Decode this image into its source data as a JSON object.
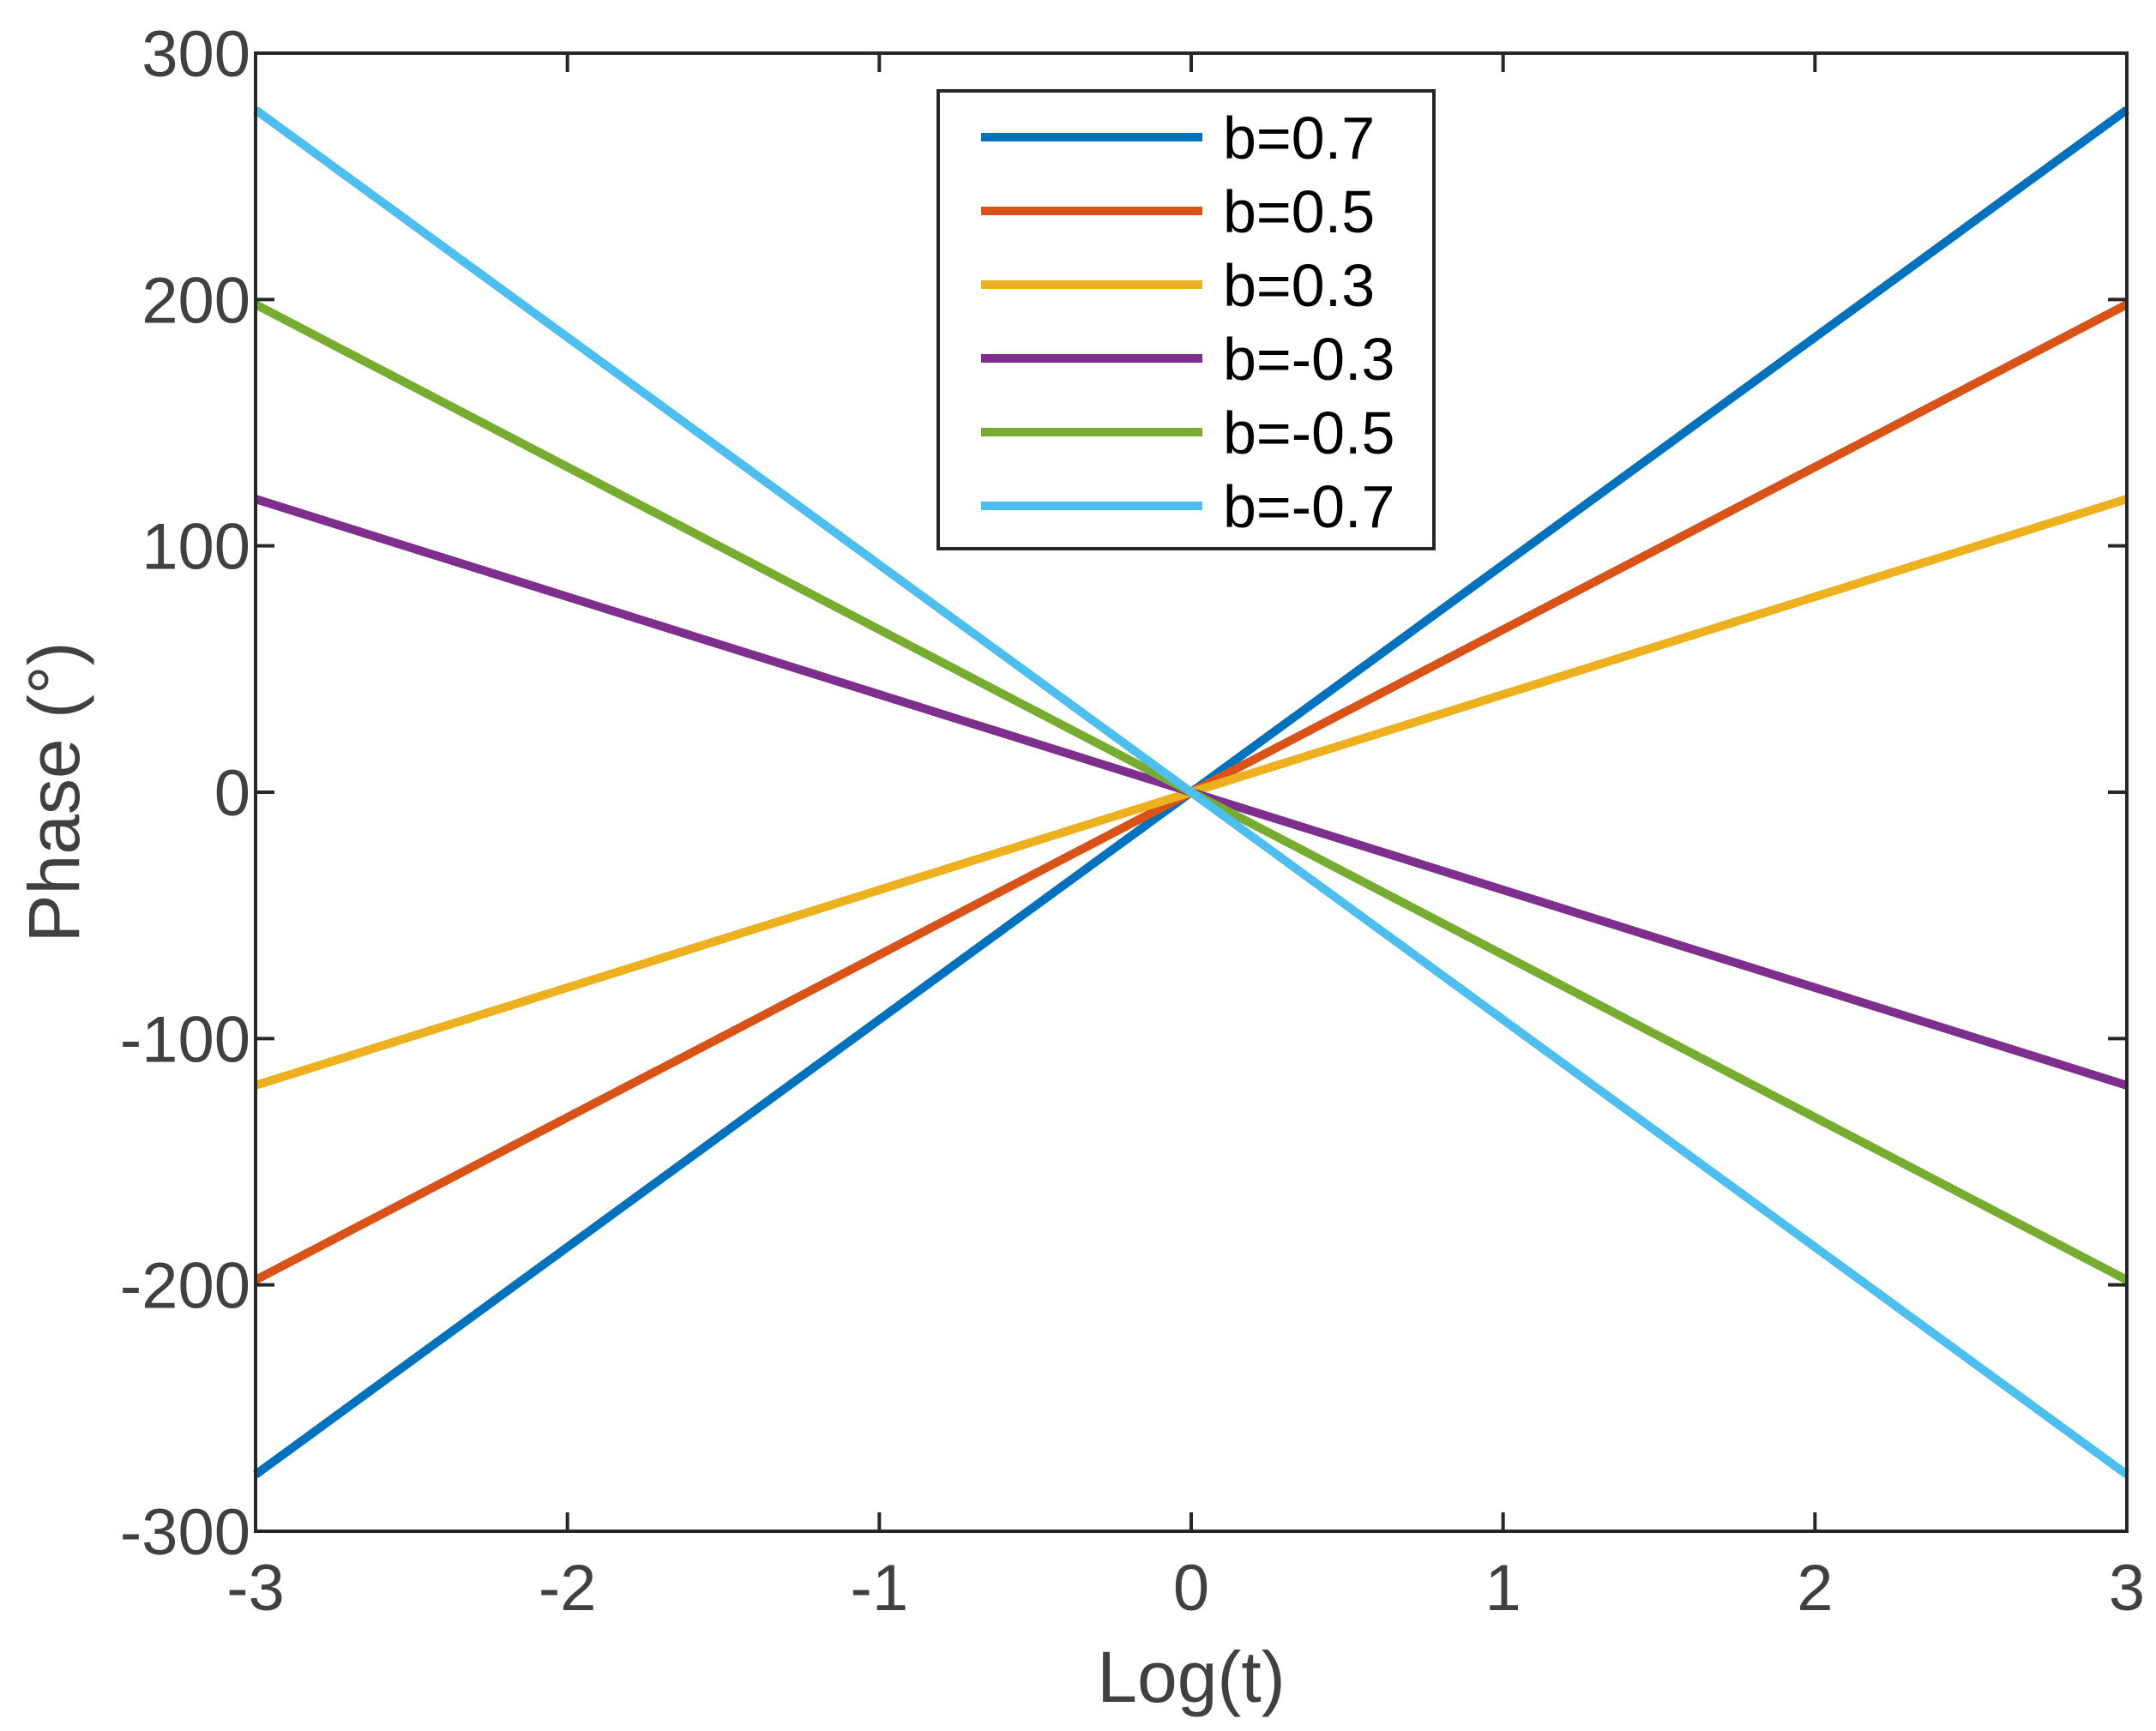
{
  "chart_data": {
    "type": "line",
    "title": "",
    "xlabel": "Log(t)",
    "ylabel": "Phase (°)",
    "xlim": [
      -3,
      3
    ],
    "ylim": [
      -300,
      300
    ],
    "xticks": [
      -3,
      -2,
      -1,
      0,
      1,
      2,
      3
    ],
    "yticks": [
      -300,
      -200,
      -100,
      0,
      100,
      200,
      300
    ],
    "xtick_labels": [
      "-3",
      "-2",
      "-1",
      "0",
      "1",
      "2",
      "3"
    ],
    "ytick_labels": [
      "-300",
      "-200",
      "-100",
      "0",
      "100",
      "200",
      "300"
    ],
    "grid": false,
    "legend_position": "top-center",
    "x": [
      -3,
      3
    ],
    "series": [
      {
        "name": "b=0.7",
        "color": "#0072BD",
        "values": [
          -277,
          277
        ]
      },
      {
        "name": "b=0.5",
        "color": "#D95319",
        "values": [
          -198,
          198
        ]
      },
      {
        "name": "b=0.3",
        "color": "#EDB120",
        "values": [
          -119,
          119
        ]
      },
      {
        "name": "b=-0.3",
        "color": "#7E2F8E",
        "values": [
          119,
          -119
        ]
      },
      {
        "name": "b=-0.5",
        "color": "#77AC30",
        "values": [
          198,
          -198
        ]
      },
      {
        "name": "b=-0.7",
        "color": "#4DBEEE",
        "values": [
          277,
          -277
        ]
      }
    ]
  }
}
